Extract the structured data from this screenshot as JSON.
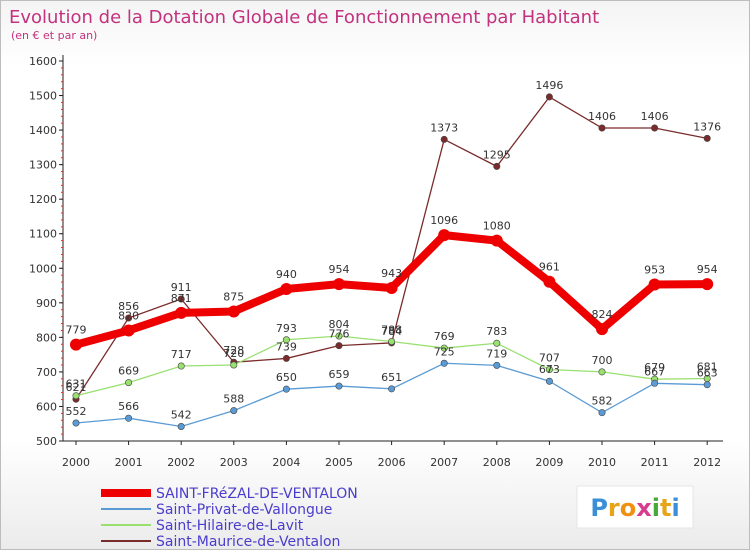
{
  "chart_data": {
    "type": "line",
    "title": "Evolution de la Dotation Globale de Fonctionnement par Habitant",
    "subtitle": "(en € et par an)",
    "xlabel": "",
    "ylabel": "",
    "categories": [
      "2000",
      "2001",
      "2002",
      "2003",
      "2004",
      "2005",
      "2006",
      "2007",
      "2008",
      "2009",
      "2010",
      "2011",
      "2012"
    ],
    "ylim": [
      500,
      1600
    ],
    "yticks": [
      500,
      600,
      700,
      800,
      900,
      1000,
      1100,
      1200,
      1300,
      1400,
      1500,
      1600
    ],
    "grid": false,
    "legend_position": "bottom-left",
    "series": [
      {
        "name": "SAINT-FRéZAL-DE-VENTALON",
        "color": "#ee0000",
        "emphasis": true,
        "values": [
          779,
          820,
          871,
          875,
          940,
          954,
          943,
          1096,
          1080,
          961,
          824,
          953,
          954
        ]
      },
      {
        "name": "Saint-Privat-de-Vallongue",
        "color": "#5b9bd5",
        "emphasis": false,
        "values": [
          552,
          566,
          542,
          588,
          650,
          659,
          651,
          725,
          719,
          673,
          582,
          667,
          663
        ]
      },
      {
        "name": "Saint-Hilaire-de-Lavit",
        "color": "#99e070",
        "emphasis": false,
        "values": [
          631,
          669,
          717,
          720,
          793,
          804,
          788,
          769,
          783,
          707,
          700,
          679,
          681
        ]
      },
      {
        "name": "Saint-Maurice-de-Ventalon",
        "color": "#7a2b2b",
        "emphasis": false,
        "values": [
          621,
          856,
          911,
          728,
          739,
          776,
          784,
          1373,
          1295,
          1496,
          1406,
          1406,
          1376
        ]
      }
    ]
  },
  "logo": {
    "text": "Proxiti"
  }
}
